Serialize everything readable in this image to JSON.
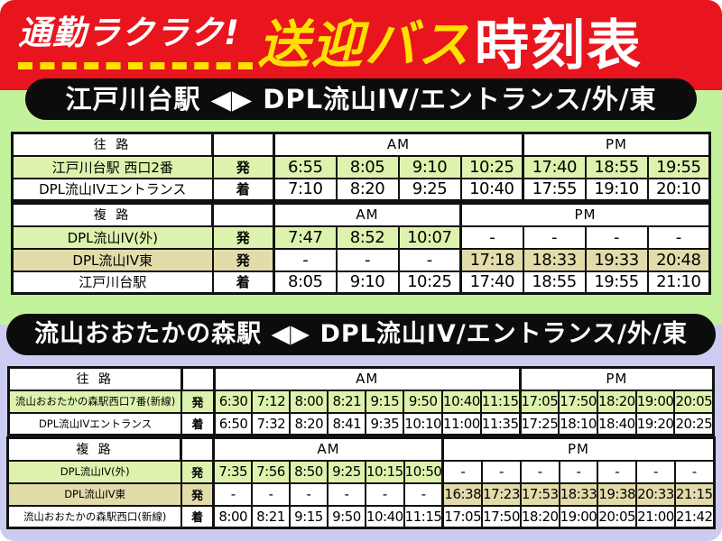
{
  "title": {
    "catchphrase": "通勤ラクラク!",
    "bus": "送迎バス",
    "timetable": "時刻表"
  },
  "colors": {
    "header_red": "#e9151e",
    "title_yellow": "#ffe100",
    "banner_black": "#0c0c0c",
    "section1_green": "#c3f29d",
    "section2_lavender": "#ccccf2",
    "row_green": "#ddf3ad",
    "row_tan": "#e2dcab"
  },
  "sections": [
    {
      "banner": "江戸川台駅 ◀▶ DPL流山IV/エントランス/外/東",
      "tables": [
        {
          "name": "timetable-edogawadai-outbound",
          "direction_label": "往 路",
          "am_label": "AM",
          "pm_label": "PM",
          "am_cols": 4,
          "pm_cols": 3,
          "rows": [
            {
              "label": "江戸川台駅 西口2番",
              "type": "発",
              "style": "green",
              "times": [
                "6:55",
                "8:05",
                "9:10",
                "10:25",
                "17:40",
                "18:55",
                "19:55"
              ]
            },
            {
              "label": "DPL流山IVエントランス",
              "type": "着",
              "style": "white",
              "times": [
                "7:10",
                "8:20",
                "9:25",
                "10:40",
                "17:55",
                "19:10",
                "20:10"
              ]
            }
          ]
        },
        {
          "name": "timetable-edogawadai-return",
          "direction_label": "複 路",
          "am_label": "AM",
          "pm_label": "PM",
          "am_cols": 3,
          "pm_cols": 4,
          "rows": [
            {
              "label": "DPL流山IV(外)",
              "type": "発",
              "style": "green",
              "times": [
                "7:47",
                "8:52",
                "10:07",
                "-",
                "-",
                "-",
                "-"
              ]
            },
            {
              "label": "DPL流山IV東",
              "type": "発",
              "style": "tan",
              "times": [
                "-",
                "-",
                "-",
                "17:18",
                "18:33",
                "19:33",
                "20:48"
              ]
            },
            {
              "label": "江戸川台駅",
              "type": "着",
              "style": "white",
              "times": [
                "8:05",
                "9:10",
                "10:25",
                "17:40",
                "18:55",
                "19:55",
                "21:10"
              ]
            }
          ]
        }
      ]
    },
    {
      "banner": "流山おおたかの森駅 ◀▶ DPL流山IV/エントランス/外/東",
      "tables": [
        {
          "name": "timetable-otakanomori-outbound",
          "direction_label": "往 路",
          "am_label": "AM",
          "pm_label": "PM",
          "am_cols": 8,
          "pm_cols": 5,
          "rows": [
            {
              "label": "流山おおたかの森駅西口7番(新線)",
              "type": "発",
              "style": "green",
              "times": [
                "6:30",
                "7:12",
                "8:00",
                "8:21",
                "9:15",
                "9:50",
                "10:40",
                "11:15",
                "17:05",
                "17:50",
                "18:20",
                "19:00",
                "20:05"
              ]
            },
            {
              "label": "DPL流山IVエントランス",
              "type": "着",
              "style": "white",
              "times": [
                "6:50",
                "7:32",
                "8:20",
                "8:41",
                "9:35",
                "10:10",
                "11:00",
                "11:35",
                "17:25",
                "18:10",
                "18:40",
                "19:20",
                "20:25"
              ]
            }
          ]
        },
        {
          "name": "timetable-otakanomori-return",
          "direction_label": "複 路",
          "am_label": "AM",
          "pm_label": "PM",
          "am_cols": 6,
          "pm_cols": 7,
          "rows": [
            {
              "label": "DPL流山IV(外)",
              "type": "発",
              "style": "green",
              "times": [
                "7:35",
                "7:56",
                "8:50",
                "9:25",
                "10:15",
                "10:50",
                "-",
                "-",
                "-",
                "-",
                "-",
                "-",
                "-"
              ]
            },
            {
              "label": "DPL流山IV東",
              "type": "発",
              "style": "tan",
              "times": [
                "-",
                "-",
                "-",
                "-",
                "-",
                "-",
                "16:38",
                "17:23",
                "17:53",
                "18:33",
                "19:38",
                "20:33",
                "21:15"
              ]
            },
            {
              "label": "流山おおたかの森駅西口(新線)",
              "type": "着",
              "style": "white",
              "times": [
                "8:00",
                "8:21",
                "9:15",
                "9:50",
                "10:40",
                "11:15",
                "17:05",
                "17:50",
                "18:20",
                "19:00",
                "20:05",
                "21:00",
                "21:42"
              ]
            }
          ]
        }
      ]
    }
  ]
}
